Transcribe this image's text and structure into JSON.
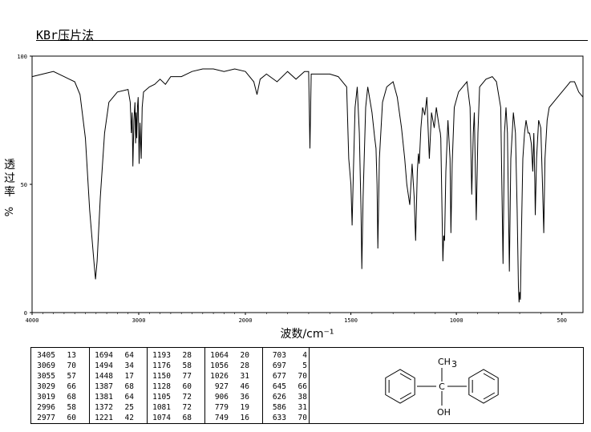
{
  "header": {
    "title": "KBr压片法"
  },
  "chart_data": {
    "type": "line",
    "xlabel": "波数/cm⁻¹",
    "ylabel": "透过率 %",
    "xlim": [
      4000,
      400
    ],
    "ylim": [
      0,
      100
    ],
    "x_ticks": [
      "4000",
      "3000",
      "2000",
      "1500",
      "1000",
      "500"
    ],
    "x_tick_values": [
      4000,
      3000,
      2000,
      1500,
      1000,
      500
    ],
    "y_ticks": [
      "0",
      "50",
      "100"
    ],
    "y_tick_values": [
      0,
      50,
      100
    ],
    "series": [
      {
        "points": [
          [
            4000,
            92
          ],
          [
            3900,
            93
          ],
          [
            3800,
            94
          ],
          [
            3700,
            92
          ],
          [
            3650,
            91
          ],
          [
            3600,
            90
          ],
          [
            3550,
            85
          ],
          [
            3500,
            68
          ],
          [
            3460,
            40
          ],
          [
            3420,
            20
          ],
          [
            3405,
            13
          ],
          [
            3390,
            20
          ],
          [
            3360,
            45
          ],
          [
            3320,
            70
          ],
          [
            3280,
            82
          ],
          [
            3200,
            86
          ],
          [
            3100,
            87
          ],
          [
            3080,
            82
          ],
          [
            3069,
            70
          ],
          [
            3062,
            78
          ],
          [
            3055,
            57
          ],
          [
            3045,
            75
          ],
          [
            3035,
            82
          ],
          [
            3029,
            66
          ],
          [
            3024,
            78
          ],
          [
            3019,
            68
          ],
          [
            3012,
            80
          ],
          [
            3005,
            84
          ],
          [
            2996,
            58
          ],
          [
            2988,
            74
          ],
          [
            2977,
            60
          ],
          [
            2968,
            80
          ],
          [
            2955,
            86
          ],
          [
            2900,
            88
          ],
          [
            2850,
            89
          ],
          [
            2800,
            91
          ],
          [
            2750,
            89
          ],
          [
            2700,
            92
          ],
          [
            2600,
            92
          ],
          [
            2500,
            94
          ],
          [
            2400,
            95
          ],
          [
            2300,
            95
          ],
          [
            2200,
            94
          ],
          [
            2100,
            95
          ],
          [
            2000,
            94
          ],
          [
            1960,
            90
          ],
          [
            1945,
            85
          ],
          [
            1930,
            91
          ],
          [
            1900,
            93
          ],
          [
            1850,
            90
          ],
          [
            1800,
            94
          ],
          [
            1760,
            91
          ],
          [
            1720,
            94
          ],
          [
            1700,
            94
          ],
          [
            1694,
            64
          ],
          [
            1688,
            93
          ],
          [
            1650,
            93
          ],
          [
            1600,
            93
          ],
          [
            1560,
            92
          ],
          [
            1520,
            88
          ],
          [
            1510,
            60
          ],
          [
            1500,
            50
          ],
          [
            1494,
            34
          ],
          [
            1488,
            55
          ],
          [
            1480,
            80
          ],
          [
            1470,
            88
          ],
          [
            1460,
            70
          ],
          [
            1452,
            40
          ],
          [
            1448,
            17
          ],
          [
            1442,
            45
          ],
          [
            1430,
            80
          ],
          [
            1420,
            88
          ],
          [
            1400,
            78
          ],
          [
            1387,
            68
          ],
          [
            1381,
            64
          ],
          [
            1376,
            50
          ],
          [
            1372,
            25
          ],
          [
            1365,
            60
          ],
          [
            1350,
            82
          ],
          [
            1330,
            88
          ],
          [
            1300,
            90
          ],
          [
            1280,
            84
          ],
          [
            1260,
            72
          ],
          [
            1245,
            60
          ],
          [
            1235,
            50
          ],
          [
            1221,
            42
          ],
          [
            1210,
            58
          ],
          [
            1200,
            45
          ],
          [
            1193,
            28
          ],
          [
            1185,
            55
          ],
          [
            1180,
            62
          ],
          [
            1176,
            58
          ],
          [
            1168,
            72
          ],
          [
            1160,
            80
          ],
          [
            1150,
            77
          ],
          [
            1140,
            84
          ],
          [
            1128,
            60
          ],
          [
            1118,
            78
          ],
          [
            1105,
            72
          ],
          [
            1095,
            80
          ],
          [
            1081,
            72
          ],
          [
            1076,
            70
          ],
          [
            1074,
            68
          ],
          [
            1068,
            40
          ],
          [
            1064,
            20
          ],
          [
            1060,
            30
          ],
          [
            1056,
            28
          ],
          [
            1050,
            55
          ],
          [
            1040,
            75
          ],
          [
            1030,
            60
          ],
          [
            1026,
            31
          ],
          [
            1020,
            58
          ],
          [
            1010,
            80
          ],
          [
            990,
            86
          ],
          [
            970,
            88
          ],
          [
            950,
            90
          ],
          [
            935,
            80
          ],
          [
            927,
            46
          ],
          [
            920,
            70
          ],
          [
            915,
            78
          ],
          [
            906,
            36
          ],
          [
            898,
            70
          ],
          [
            890,
            88
          ],
          [
            860,
            91
          ],
          [
            830,
            92
          ],
          [
            810,
            90
          ],
          [
            790,
            80
          ],
          [
            779,
            19
          ],
          [
            772,
            70
          ],
          [
            765,
            80
          ],
          [
            758,
            70
          ],
          [
            749,
            16
          ],
          [
            742,
            60
          ],
          [
            730,
            78
          ],
          [
            720,
            70
          ],
          [
            712,
            40
          ],
          [
            706,
            10
          ],
          [
            703,
            4
          ],
          [
            700,
            8
          ],
          [
            697,
            5
          ],
          [
            692,
            30
          ],
          [
            685,
            60
          ],
          [
            677,
            70
          ],
          [
            670,
            75
          ],
          [
            660,
            70
          ],
          [
            653,
            70
          ],
          [
            645,
            66
          ],
          [
            638,
            55
          ],
          [
            633,
            70
          ],
          [
            628,
            50
          ],
          [
            626,
            38
          ],
          [
            620,
            60
          ],
          [
            610,
            75
          ],
          [
            600,
            72
          ],
          [
            592,
            50
          ],
          [
            586,
            31
          ],
          [
            580,
            60
          ],
          [
            570,
            75
          ],
          [
            560,
            80
          ],
          [
            540,
            82
          ],
          [
            520,
            84
          ],
          [
            500,
            86
          ],
          [
            480,
            88
          ],
          [
            460,
            90
          ],
          [
            440,
            90
          ],
          [
            420,
            86
          ],
          [
            400,
            84
          ]
        ]
      }
    ],
    "peak_table": [
      [
        [
          "3405",
          "13"
        ],
        [
          "3069",
          "70"
        ],
        [
          "3055",
          "57"
        ],
        [
          "3029",
          "66"
        ],
        [
          "3019",
          "68"
        ],
        [
          "2996",
          "58"
        ],
        [
          "2977",
          "60"
        ]
      ],
      [
        [
          "1694",
          "64"
        ],
        [
          "1494",
          "34"
        ],
        [
          "1448",
          "17"
        ],
        [
          "1387",
          "68"
        ],
        [
          "1381",
          "64"
        ],
        [
          "1372",
          "25"
        ],
        [
          "1221",
          "42"
        ]
      ],
      [
        [
          "1193",
          "28"
        ],
        [
          "1176",
          "58"
        ],
        [
          "1150",
          "77"
        ],
        [
          "1128",
          "60"
        ],
        [
          "1105",
          "72"
        ],
        [
          "1081",
          "72"
        ],
        [
          "1074",
          "68"
        ]
      ],
      [
        [
          "1064",
          "20"
        ],
        [
          "1056",
          "28"
        ],
        [
          "1026",
          "31"
        ],
        [
          "927",
          "46"
        ],
        [
          "906",
          "36"
        ],
        [
          "779",
          "19"
        ],
        [
          "749",
          "16"
        ]
      ],
      [
        [
          "703",
          "4"
        ],
        [
          "697",
          "5"
        ],
        [
          "677",
          "70"
        ],
        [
          "645",
          "66"
        ],
        [
          "626",
          "38"
        ],
        [
          "586",
          "31"
        ],
        [
          "633",
          "70"
        ]
      ]
    ]
  },
  "structure": {
    "top_label": "CH",
    "top_sub": "3",
    "bottom_label": "OH",
    "center_label": "C"
  }
}
